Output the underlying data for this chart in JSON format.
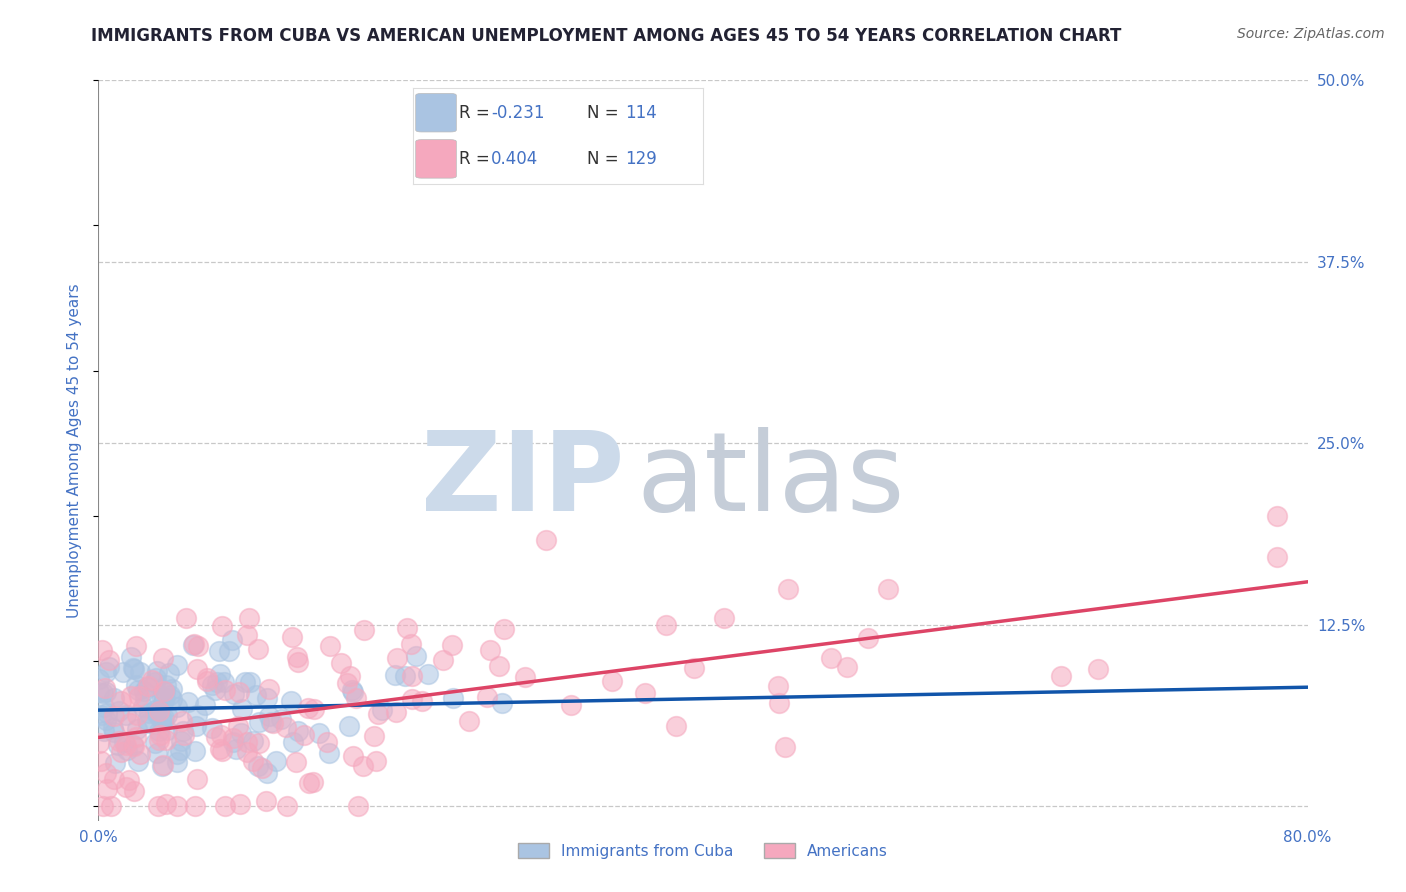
{
  "title": "IMMIGRANTS FROM CUBA VS AMERICAN UNEMPLOYMENT AMONG AGES 45 TO 54 YEARS CORRELATION CHART",
  "source": "Source: ZipAtlas.com",
  "ylabel": "Unemployment Among Ages 45 to 54 years",
  "xlim": [
    0.0,
    0.8
  ],
  "ylim": [
    -0.01,
    0.5
  ],
  "yticks": [
    0.0,
    0.125,
    0.25,
    0.375,
    0.5
  ],
  "ytick_labels": [
    "12.5%",
    "25.0%",
    "37.5%",
    "50.0%"
  ],
  "blue_R": -0.231,
  "blue_N": 114,
  "pink_R": 0.404,
  "pink_N": 129,
  "blue_color": "#aac4e2",
  "pink_color": "#f5a8be",
  "blue_line_color": "#1155aa",
  "pink_line_color": "#dd4466",
  "title_color": "#222233",
  "axis_label_color": "#4472c4",
  "background_color": "#ffffff",
  "legend_R_color": "#4472c4",
  "bottom_legend_label_color": "#4472c4"
}
